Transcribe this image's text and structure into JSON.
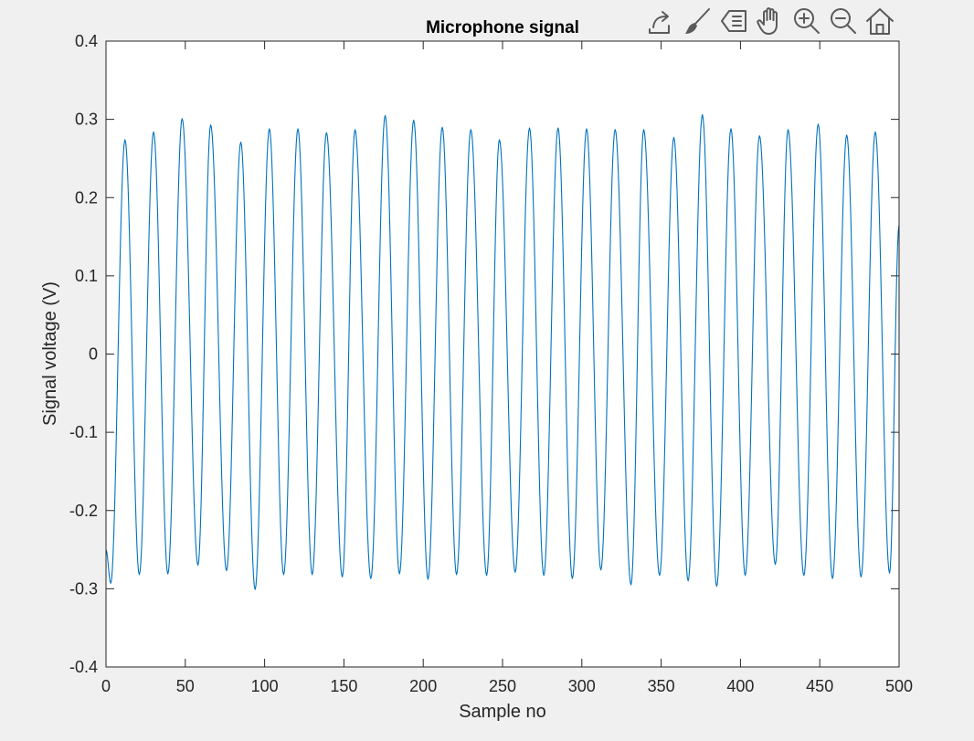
{
  "chart_data": {
    "type": "line",
    "title": "Microphone signal",
    "xlabel": "Sample no",
    "ylabel": "Signal voltage (V)",
    "xlim": [
      0,
      500
    ],
    "ylim": [
      -0.4,
      0.4
    ],
    "xticks": [
      "0",
      "50",
      "100",
      "150",
      "200",
      "250",
      "300",
      "350",
      "400",
      "450",
      "500"
    ],
    "yticks": [
      "-0.4",
      "-0.3",
      "-0.2",
      "-0.1",
      "0",
      "0.1",
      "0.2",
      "0.3",
      "0.4"
    ],
    "grid": false,
    "line_color": "#0072bd",
    "signal": {
      "description_free_model": "sinusoid",
      "amplitude": 0.283,
      "period_samples": 18.22,
      "start_value": -0.25,
      "end_value": 0.165,
      "sample_count": 501
    },
    "peaks": [
      {
        "x": 12,
        "y": 0.274
      },
      {
        "x": 30,
        "y": 0.284
      },
      {
        "x": 48,
        "y": 0.301
      },
      {
        "x": 66,
        "y": 0.293
      },
      {
        "x": 85,
        "y": 0.271
      },
      {
        "x": 103,
        "y": 0.288
      },
      {
        "x": 121,
        "y": 0.288
      },
      {
        "x": 139,
        "y": 0.283
      },
      {
        "x": 157,
        "y": 0.287
      },
      {
        "x": 176,
        "y": 0.305
      },
      {
        "x": 194,
        "y": 0.299
      },
      {
        "x": 212,
        "y": 0.29
      },
      {
        "x": 230,
        "y": 0.287
      },
      {
        "x": 248,
        "y": 0.274
      },
      {
        "x": 267,
        "y": 0.289
      },
      {
        "x": 285,
        "y": 0.289
      },
      {
        "x": 303,
        "y": 0.288
      },
      {
        "x": 321,
        "y": 0.287
      },
      {
        "x": 339,
        "y": 0.287
      },
      {
        "x": 358,
        "y": 0.277
      },
      {
        "x": 376,
        "y": 0.306
      },
      {
        "x": 394,
        "y": 0.288
      },
      {
        "x": 412,
        "y": 0.279
      },
      {
        "x": 430,
        "y": 0.287
      },
      {
        "x": 449,
        "y": 0.294
      },
      {
        "x": 467,
        "y": 0.28
      },
      {
        "x": 485,
        "y": 0.284
      }
    ],
    "troughs": [
      {
        "x": 3,
        "y": -0.293
      },
      {
        "x": 21,
        "y": -0.282
      },
      {
        "x": 39,
        "y": -0.281
      },
      {
        "x": 58,
        "y": -0.27
      },
      {
        "x": 76,
        "y": -0.277
      },
      {
        "x": 94,
        "y": -0.301
      },
      {
        "x": 112,
        "y": -0.282
      },
      {
        "x": 130,
        "y": -0.282
      },
      {
        "x": 149,
        "y": -0.285
      },
      {
        "x": 167,
        "y": -0.287
      },
      {
        "x": 185,
        "y": -0.281
      },
      {
        "x": 203,
        "y": -0.288
      },
      {
        "x": 221,
        "y": -0.282
      },
      {
        "x": 240,
        "y": -0.283
      },
      {
        "x": 258,
        "y": -0.279
      },
      {
        "x": 276,
        "y": -0.283
      },
      {
        "x": 294,
        "y": -0.287
      },
      {
        "x": 312,
        "y": -0.276
      },
      {
        "x": 331,
        "y": -0.295
      },
      {
        "x": 349,
        "y": -0.283
      },
      {
        "x": 367,
        "y": -0.29
      },
      {
        "x": 385,
        "y": -0.297
      },
      {
        "x": 403,
        "y": -0.283
      },
      {
        "x": 422,
        "y": -0.269
      },
      {
        "x": 440,
        "y": -0.283
      },
      {
        "x": 458,
        "y": -0.287
      },
      {
        "x": 476,
        "y": -0.285
      },
      {
        "x": 494,
        "y": -0.28
      }
    ]
  },
  "toolbar": {
    "icons": [
      "export-icon",
      "brush-icon",
      "datatip-icon",
      "pan-icon",
      "zoom-in-icon",
      "zoom-out-icon",
      "home-icon"
    ]
  }
}
